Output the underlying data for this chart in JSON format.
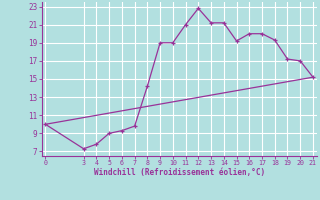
{
  "xlabel": "Windchill (Refroidissement éolien,°C)",
  "background_color": "#b2e0e0",
  "grid_color": "#c8e8e8",
  "line_color": "#993399",
  "line1_x": [
    0,
    3,
    4,
    5,
    6,
    7,
    8,
    9,
    10,
    11,
    12,
    13,
    14,
    15,
    16,
    17,
    18,
    19,
    20,
    21
  ],
  "line1_y": [
    10.0,
    7.3,
    7.8,
    9.0,
    9.3,
    9.8,
    14.2,
    19.0,
    19.0,
    21.0,
    22.8,
    21.2,
    21.2,
    19.2,
    20.0,
    20.0,
    19.3,
    17.2,
    17.0,
    15.2
  ],
  "line2_x": [
    0,
    21
  ],
  "line2_y": [
    10.0,
    15.2
  ],
  "yticks": [
    7,
    9,
    11,
    13,
    15,
    17,
    19,
    21,
    23
  ],
  "xticks": [
    0,
    3,
    4,
    5,
    6,
    7,
    8,
    9,
    10,
    11,
    12,
    13,
    14,
    15,
    16,
    17,
    18,
    19,
    20,
    21
  ],
  "xlim": [
    -0.3,
    21.3
  ],
  "ylim": [
    6.5,
    23.5
  ],
  "tick_color": "#993399",
  "xlabel_color": "#993399",
  "spine_color": "#993399"
}
